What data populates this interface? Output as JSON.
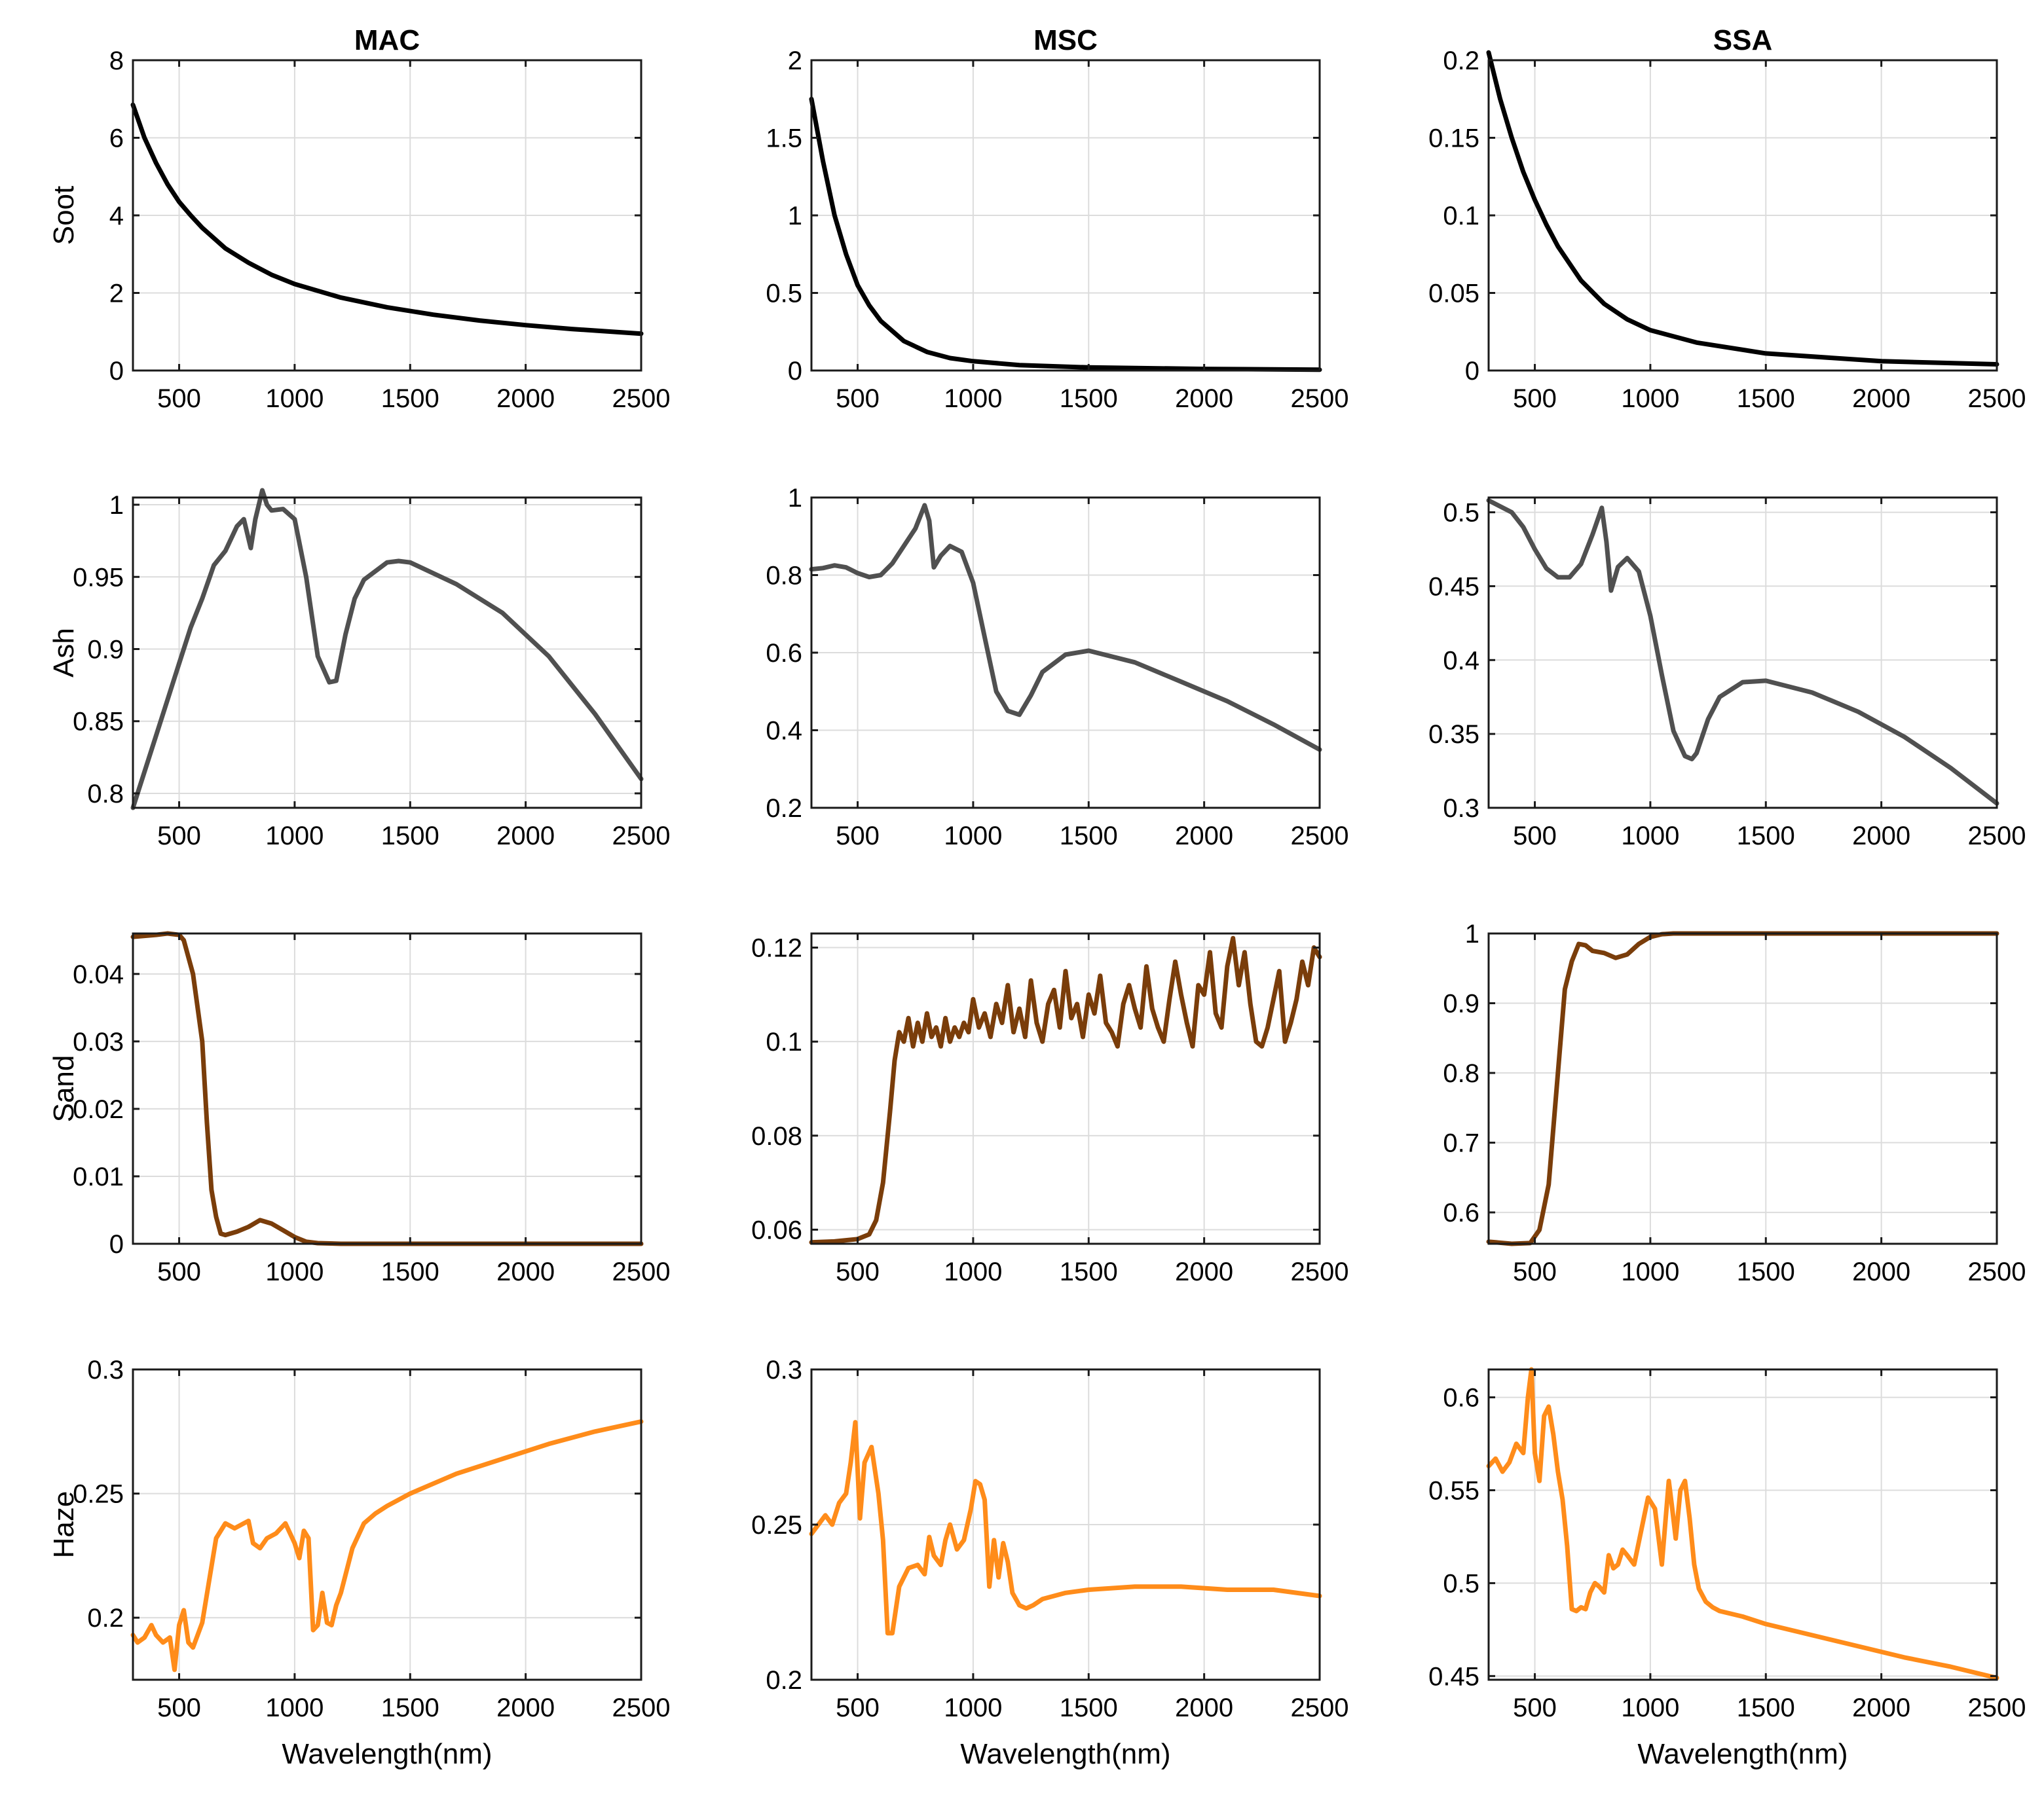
{
  "chart_data": {
    "type": "line",
    "layout": "4x3 grid of line plots",
    "column_titles": [
      "MAC",
      "MSC",
      "SSA"
    ],
    "row_labels": [
      "Soot",
      "Ash",
      "Sand",
      "Haze"
    ],
    "xlabel": "Wavelength(nm)",
    "xlim": [
      300,
      2500
    ],
    "xticks": [
      500,
      1000,
      1500,
      2000,
      2500
    ],
    "grid": true,
    "colors": {
      "Soot": "#000000",
      "Ash": "#505050",
      "Sand": "#7a3d0a",
      "Haze": "#ff8c1a"
    },
    "panels": [
      {
        "row": "Soot",
        "column": "MAC",
        "ylim": [
          0,
          8
        ],
        "yticks": [
          0,
          2,
          4,
          6,
          8
        ],
        "x": [
          300,
          350,
          400,
          450,
          500,
          550,
          600,
          700,
          800,
          900,
          1000,
          1200,
          1400,
          1600,
          1800,
          2000,
          2200,
          2500
        ],
        "y": [
          6.85,
          6.0,
          5.35,
          4.8,
          4.35,
          4.0,
          3.68,
          3.15,
          2.78,
          2.47,
          2.23,
          1.88,
          1.63,
          1.44,
          1.29,
          1.17,
          1.07,
          0.95
        ]
      },
      {
        "row": "Soot",
        "column": "MSC",
        "ylim": [
          0,
          2
        ],
        "yticks": [
          0,
          0.5,
          1,
          1.5,
          2
        ],
        "x": [
          300,
          350,
          400,
          450,
          500,
          550,
          600,
          700,
          800,
          900,
          1000,
          1200,
          1500,
          2000,
          2500
        ],
        "y": [
          1.75,
          1.35,
          1.0,
          0.75,
          0.55,
          0.42,
          0.32,
          0.19,
          0.12,
          0.08,
          0.06,
          0.035,
          0.02,
          0.01,
          0.005
        ]
      },
      {
        "row": "Soot",
        "column": "SSA",
        "ylim": [
          0,
          0.2
        ],
        "yticks": [
          0,
          0.05,
          0.1,
          0.15,
          0.2
        ],
        "x": [
          300,
          350,
          400,
          450,
          500,
          550,
          600,
          700,
          800,
          900,
          1000,
          1200,
          1500,
          2000,
          2500
        ],
        "y": [
          0.205,
          0.175,
          0.15,
          0.128,
          0.11,
          0.094,
          0.08,
          0.058,
          0.043,
          0.033,
          0.026,
          0.018,
          0.011,
          0.006,
          0.004
        ]
      },
      {
        "row": "Ash",
        "column": "MAC",
        "ylim": [
          0.79,
          1.005
        ],
        "yticks": [
          0.8,
          0.85,
          0.9,
          0.95,
          1
        ],
        "x": [
          300,
          400,
          500,
          550,
          600,
          650,
          700,
          750,
          780,
          810,
          830,
          860,
          880,
          900,
          950,
          1000,
          1050,
          1100,
          1150,
          1180,
          1220,
          1260,
          1300,
          1400,
          1450,
          1500,
          1700,
          1900,
          2100,
          2300,
          2500
        ],
        "y": [
          0.79,
          0.84,
          0.89,
          0.915,
          0.935,
          0.958,
          0.968,
          0.985,
          0.99,
          0.97,
          0.99,
          1.01,
          1.0,
          0.996,
          0.997,
          0.99,
          0.95,
          0.895,
          0.877,
          0.878,
          0.91,
          0.935,
          0.948,
          0.96,
          0.961,
          0.96,
          0.945,
          0.925,
          0.895,
          0.855,
          0.81
        ]
      },
      {
        "row": "Ash",
        "column": "MSC",
        "ylim": [
          0.2,
          1.0
        ],
        "yticks": [
          0.2,
          0.4,
          0.6,
          0.8,
          1
        ],
        "x": [
          300,
          350,
          400,
          450,
          500,
          550,
          600,
          650,
          700,
          750,
          790,
          810,
          830,
          860,
          900,
          950,
          1000,
          1050,
          1100,
          1150,
          1200,
          1250,
          1300,
          1400,
          1500,
          1700,
          1900,
          2100,
          2300,
          2500
        ],
        "y": [
          0.815,
          0.818,
          0.825,
          0.82,
          0.805,
          0.795,
          0.8,
          0.83,
          0.875,
          0.92,
          0.98,
          0.94,
          0.82,
          0.85,
          0.875,
          0.86,
          0.78,
          0.64,
          0.5,
          0.45,
          0.44,
          0.49,
          0.55,
          0.595,
          0.605,
          0.575,
          0.525,
          0.475,
          0.415,
          0.35
        ]
      },
      {
        "row": "Ash",
        "column": "SSA",
        "ylim": [
          0.3,
          0.51
        ],
        "yticks": [
          0.3,
          0.35,
          0.4,
          0.45,
          0.5
        ],
        "x": [
          300,
          400,
          450,
          500,
          550,
          600,
          650,
          700,
          750,
          790,
          810,
          830,
          860,
          900,
          950,
          1000,
          1050,
          1100,
          1150,
          1180,
          1200,
          1250,
          1300,
          1400,
          1500,
          1700,
          1900,
          2100,
          2300,
          2500
        ],
        "y": [
          0.508,
          0.5,
          0.49,
          0.475,
          0.462,
          0.456,
          0.456,
          0.465,
          0.485,
          0.503,
          0.48,
          0.447,
          0.463,
          0.469,
          0.46,
          0.43,
          0.39,
          0.352,
          0.335,
          0.333,
          0.337,
          0.36,
          0.375,
          0.385,
          0.386,
          0.378,
          0.365,
          0.348,
          0.327,
          0.303
        ]
      },
      {
        "row": "Sand",
        "column": "MAC",
        "ylim": [
          0,
          0.046
        ],
        "yticks": [
          0,
          0.01,
          0.02,
          0.03,
          0.04
        ],
        "x": [
          300,
          400,
          450,
          500,
          520,
          560,
          600,
          620,
          640,
          660,
          680,
          700,
          750,
          800,
          850,
          900,
          950,
          1000,
          1050,
          1100,
          1200,
          1500,
          2000,
          2500
        ],
        "y": [
          0.0455,
          0.0458,
          0.046,
          0.0458,
          0.045,
          0.04,
          0.03,
          0.018,
          0.008,
          0.004,
          0.0015,
          0.0013,
          0.0018,
          0.0025,
          0.0035,
          0.003,
          0.002,
          0.001,
          0.0003,
          0.0001,
          0,
          0,
          0,
          0
        ]
      },
      {
        "row": "Sand",
        "column": "MSC",
        "ylim": [
          0.057,
          0.123
        ],
        "yticks": [
          0.06,
          0.08,
          0.1,
          0.12
        ],
        "x": [
          300,
          400,
          500,
          550,
          580,
          610,
          640,
          660,
          680,
          700,
          720,
          740,
          760,
          780,
          800,
          820,
          840,
          860,
          880,
          900,
          920,
          940,
          960,
          980,
          1000,
          1025,
          1050,
          1075,
          1100,
          1125,
          1150,
          1175,
          1200,
          1225,
          1250,
          1275,
          1300,
          1325,
          1350,
          1375,
          1400,
          1425,
          1450,
          1475,
          1500,
          1525,
          1550,
          1575,
          1600,
          1625,
          1650,
          1675,
          1700,
          1725,
          1750,
          1775,
          1800,
          1825,
          1850,
          1875,
          1900,
          1925,
          1950,
          1975,
          2000,
          2025,
          2050,
          2075,
          2100,
          2125,
          2150,
          2175,
          2200,
          2225,
          2250,
          2275,
          2300,
          2325,
          2350,
          2375,
          2400,
          2425,
          2450,
          2475,
          2500
        ],
        "y": [
          0.0573,
          0.0575,
          0.058,
          0.059,
          0.062,
          0.07,
          0.085,
          0.096,
          0.102,
          0.1,
          0.105,
          0.099,
          0.104,
          0.1,
          0.106,
          0.101,
          0.103,
          0.099,
          0.105,
          0.1,
          0.103,
          0.101,
          0.104,
          0.102,
          0.109,
          0.103,
          0.106,
          0.101,
          0.108,
          0.104,
          0.112,
          0.102,
          0.107,
          0.101,
          0.113,
          0.104,
          0.1,
          0.108,
          0.111,
          0.103,
          0.115,
          0.105,
          0.108,
          0.101,
          0.11,
          0.106,
          0.114,
          0.104,
          0.102,
          0.099,
          0.108,
          0.112,
          0.107,
          0.103,
          0.116,
          0.107,
          0.103,
          0.1,
          0.109,
          0.117,
          0.11,
          0.104,
          0.099,
          0.112,
          0.11,
          0.119,
          0.106,
          0.103,
          0.116,
          0.122,
          0.112,
          0.119,
          0.108,
          0.1,
          0.099,
          0.103,
          0.109,
          0.115,
          0.1,
          0.104,
          0.109,
          0.117,
          0.112,
          0.12,
          0.118
        ]
      },
      {
        "row": "Sand",
        "column": "SSA",
        "ylim": [
          0.555,
          1.0
        ],
        "yticks": [
          0.6,
          0.7,
          0.8,
          0.9,
          1
        ],
        "x": [
          300,
          400,
          480,
          520,
          560,
          600,
          630,
          660,
          690,
          720,
          750,
          800,
          850,
          900,
          950,
          1000,
          1050,
          1100,
          1200,
          1500,
          2000,
          2500
        ],
        "y": [
          0.558,
          0.555,
          0.556,
          0.575,
          0.64,
          0.8,
          0.92,
          0.96,
          0.985,
          0.983,
          0.975,
          0.972,
          0.965,
          0.97,
          0.985,
          0.995,
          0.999,
          1.0,
          1.0,
          1.0,
          1.0,
          1.0
        ]
      },
      {
        "row": "Haze",
        "column": "MAC",
        "ylim": [
          0.175,
          0.3
        ],
        "yticks": [
          0.2,
          0.25,
          0.3
        ],
        "x": [
          300,
          320,
          350,
          380,
          400,
          430,
          460,
          480,
          500,
          520,
          540,
          560,
          580,
          600,
          630,
          660,
          700,
          740,
          780,
          800,
          820,
          850,
          880,
          920,
          960,
          1000,
          1020,
          1040,
          1060,
          1080,
          1100,
          1120,
          1140,
          1160,
          1180,
          1200,
          1250,
          1300,
          1350,
          1400,
          1500,
          1700,
          1900,
          2100,
          2300,
          2500
        ],
        "y": [
          0.193,
          0.19,
          0.192,
          0.197,
          0.193,
          0.19,
          0.192,
          0.179,
          0.197,
          0.203,
          0.19,
          0.188,
          0.193,
          0.198,
          0.215,
          0.232,
          0.238,
          0.236,
          0.238,
          0.239,
          0.23,
          0.228,
          0.232,
          0.234,
          0.238,
          0.23,
          0.224,
          0.235,
          0.232,
          0.195,
          0.197,
          0.21,
          0.198,
          0.197,
          0.205,
          0.21,
          0.228,
          0.238,
          0.242,
          0.245,
          0.25,
          0.258,
          0.264,
          0.27,
          0.275,
          0.279
        ]
      },
      {
        "row": "Haze",
        "column": "MSC",
        "ylim": [
          0.2,
          0.3
        ],
        "yticks": [
          0.2,
          0.25,
          0.3
        ],
        "x": [
          300,
          330,
          360,
          390,
          420,
          450,
          470,
          490,
          510,
          530,
          560,
          590,
          610,
          630,
          650,
          680,
          720,
          760,
          790,
          810,
          830,
          860,
          880,
          900,
          930,
          960,
          990,
          1010,
          1030,
          1050,
          1070,
          1090,
          1110,
          1130,
          1150,
          1170,
          1200,
          1230,
          1260,
          1300,
          1400,
          1500,
          1700,
          1900,
          2100,
          2300,
          2500
        ],
        "y": [
          0.247,
          0.25,
          0.253,
          0.25,
          0.257,
          0.26,
          0.27,
          0.283,
          0.252,
          0.27,
          0.275,
          0.26,
          0.245,
          0.215,
          0.215,
          0.23,
          0.236,
          0.237,
          0.234,
          0.246,
          0.24,
          0.237,
          0.245,
          0.25,
          0.242,
          0.245,
          0.255,
          0.264,
          0.263,
          0.258,
          0.23,
          0.245,
          0.233,
          0.244,
          0.238,
          0.228,
          0.224,
          0.223,
          0.224,
          0.226,
          0.228,
          0.229,
          0.23,
          0.23,
          0.229,
          0.229,
          0.227
        ]
      },
      {
        "row": "Haze",
        "column": "SSA",
        "ylim": [
          0.448,
          0.615
        ],
        "yticks": [
          0.45,
          0.5,
          0.55,
          0.6
        ],
        "x": [
          300,
          330,
          360,
          390,
          420,
          450,
          470,
          485,
          500,
          520,
          540,
          560,
          580,
          600,
          620,
          640,
          660,
          680,
          700,
          720,
          740,
          760,
          780,
          800,
          820,
          840,
          860,
          880,
          900,
          930,
          960,
          990,
          1020,
          1050,
          1080,
          1095,
          1110,
          1130,
          1150,
          1170,
          1190,
          1210,
          1240,
          1270,
          1300,
          1400,
          1500,
          1700,
          1900,
          2100,
          2300,
          2500
        ],
        "y": [
          0.563,
          0.567,
          0.56,
          0.565,
          0.575,
          0.57,
          0.6,
          0.615,
          0.57,
          0.555,
          0.59,
          0.595,
          0.58,
          0.56,
          0.545,
          0.52,
          0.486,
          0.485,
          0.487,
          0.486,
          0.495,
          0.5,
          0.498,
          0.495,
          0.515,
          0.508,
          0.51,
          0.518,
          0.515,
          0.51,
          0.528,
          0.546,
          0.54,
          0.51,
          0.555,
          0.54,
          0.524,
          0.55,
          0.555,
          0.535,
          0.51,
          0.497,
          0.49,
          0.487,
          0.485,
          0.482,
          0.478,
          0.472,
          0.466,
          0.46,
          0.455,
          0.449
        ]
      }
    ]
  }
}
